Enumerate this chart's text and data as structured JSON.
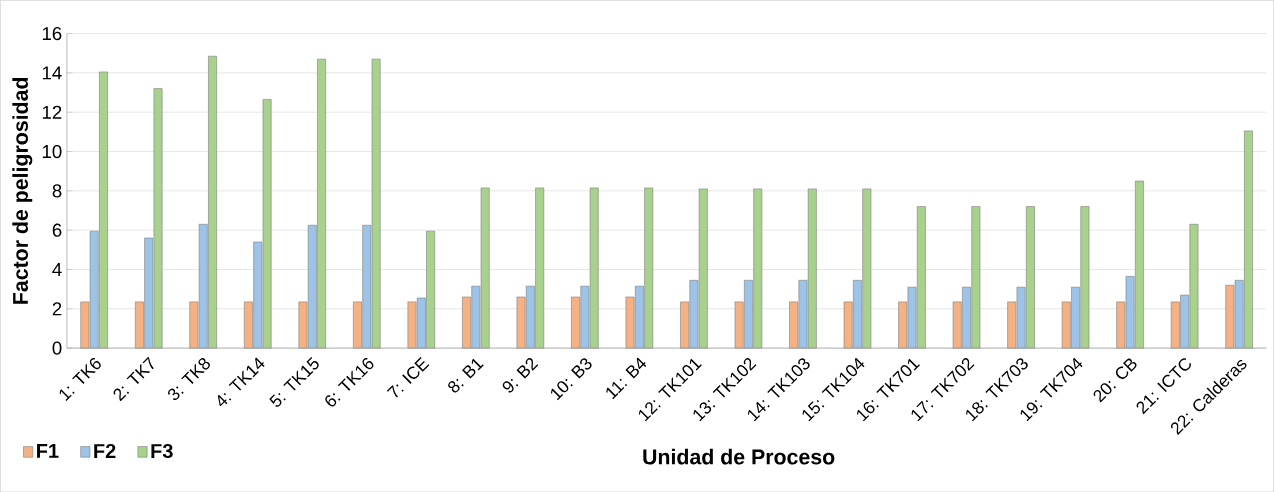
{
  "chart_data": {
    "type": "bar",
    "xlabel": "Unidad de Proceso",
    "ylabel": "Factor de peligrosidad",
    "categories": [
      "1: TK6",
      "2: TK7",
      "3: TK8",
      "4: TK14",
      "5: TK15",
      "6: TK16",
      "7: ICE",
      "8: B1",
      "9: B2",
      "10: B3",
      "11: B4",
      "12: TK101",
      "13: TK102",
      "14: TK103",
      "15: TK104",
      "16: TK701",
      "17: TK702",
      "18: TK703",
      "19: TK704",
      "20: CB",
      "21: ICTC",
      "22: Calderas"
    ],
    "series": [
      {
        "name": "F1",
        "color": "#f4b183",
        "values": [
          2.35,
          2.35,
          2.35,
          2.35,
          2.35,
          2.35,
          2.35,
          2.6,
          2.6,
          2.6,
          2.6,
          2.35,
          2.35,
          2.35,
          2.35,
          2.35,
          2.35,
          2.35,
          2.35,
          2.35,
          2.35,
          3.2
        ]
      },
      {
        "name": "F2",
        "color": "#9dc3e6",
        "values": [
          5.95,
          5.6,
          6.3,
          5.4,
          6.25,
          6.25,
          2.55,
          3.15,
          3.15,
          3.15,
          3.15,
          3.45,
          3.45,
          3.45,
          3.45,
          3.1,
          3.1,
          3.1,
          3.1,
          3.65,
          2.7,
          3.45
        ]
      },
      {
        "name": "F3",
        "color": "#a9d18e",
        "values": [
          14.05,
          13.2,
          14.85,
          12.65,
          14.7,
          14.7,
          5.95,
          8.15,
          8.15,
          8.15,
          8.15,
          8.1,
          8.1,
          8.1,
          8.1,
          7.2,
          7.2,
          7.2,
          7.2,
          8.5,
          6.3,
          11.05
        ]
      }
    ],
    "ylim": [
      0,
      16
    ],
    "yticks": [
      0,
      2,
      4,
      6,
      8,
      10,
      12,
      14,
      16
    ],
    "grid": "y",
    "legend": "bottom left"
  }
}
